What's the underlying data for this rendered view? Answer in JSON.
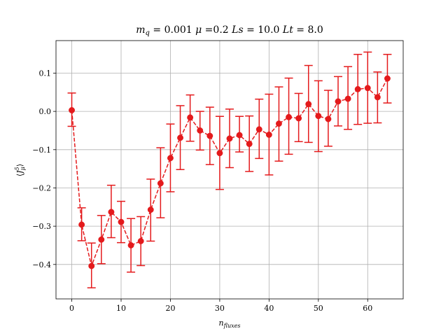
{
  "chart_data": {
    "type": "scatter",
    "style": "errorbar-dashed-line",
    "title": "m_q = 0.001 μ =0.2 Ls = 10.0 Lt = 8.0",
    "xlabel": "n_fluxes",
    "ylabel": "⟨J⁵_μ⟩",
    "xlim": [
      -3.2,
      67.2
    ],
    "ylim": [
      -0.49,
      0.185
    ],
    "grid": true,
    "legend": "none",
    "color": "#e41a1c",
    "x_ticks": [
      0,
      10,
      20,
      30,
      40,
      50,
      60
    ],
    "x_tick_labels": [
      "0",
      "10",
      "20",
      "30",
      "40",
      "50",
      "60"
    ],
    "y_ticks": [
      0.1,
      0.0,
      -0.1,
      -0.2,
      -0.3,
      -0.4
    ],
    "y_tick_labels": [
      "0.1",
      "0.0",
      "−0.1",
      "−0.2",
      "−0.3",
      "−0.4"
    ],
    "x": [
      0,
      2,
      4,
      6,
      8,
      10,
      12,
      14,
      16,
      18,
      20,
      22,
      24,
      26,
      28,
      30,
      32,
      34,
      36,
      38,
      40,
      42,
      44,
      46,
      48,
      50,
      52,
      54,
      56,
      58,
      60,
      62,
      64
    ],
    "y": [
      0.003,
      -0.296,
      -0.404,
      -0.335,
      -0.263,
      -0.289,
      -0.35,
      -0.339,
      -0.257,
      -0.188,
      -0.122,
      -0.069,
      -0.016,
      -0.05,
      -0.064,
      -0.109,
      -0.071,
      -0.062,
      -0.085,
      -0.047,
      -0.061,
      -0.032,
      -0.015,
      -0.018,
      0.019,
      -0.012,
      -0.02,
      0.026,
      0.033,
      0.058,
      0.061,
      0.037,
      0.086
    ],
    "err_upper": [
      0.048,
      -0.252,
      -0.344,
      -0.272,
      -0.193,
      -0.235,
      -0.28,
      -0.275,
      -0.177,
      -0.095,
      -0.033,
      0.015,
      0.043,
      0.0,
      0.011,
      -0.013,
      0.006,
      -0.013,
      -0.012,
      0.032,
      0.045,
      0.064,
      0.087,
      0.047,
      0.12,
      0.08,
      0.055,
      0.091,
      0.117,
      0.149,
      0.155,
      0.103,
      0.149
    ],
    "err_lower": [
      -0.039,
      -0.338,
      -0.461,
      -0.398,
      -0.33,
      -0.343,
      -0.42,
      -0.403,
      -0.339,
      -0.278,
      -0.21,
      -0.152,
      -0.078,
      -0.101,
      -0.139,
      -0.204,
      -0.147,
      -0.106,
      -0.157,
      -0.123,
      -0.166,
      -0.13,
      -0.112,
      -0.079,
      -0.081,
      -0.105,
      -0.091,
      -0.038,
      -0.047,
      -0.034,
      -0.031,
      -0.03,
      0.022
    ]
  }
}
